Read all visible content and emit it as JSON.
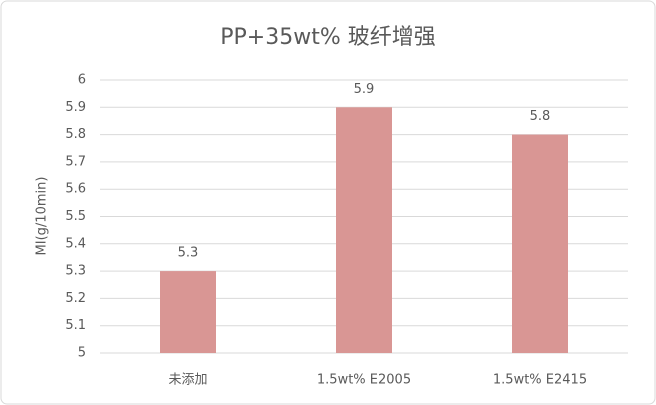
{
  "chart_data": {
    "type": "bar",
    "title": "PP+35wt% 玻纤增强",
    "y_label": "MI(g/10min)",
    "categories": [
      "未添加",
      "1.5wt% E2005",
      "1.5wt% E2415"
    ],
    "values": [
      5.3,
      5.9,
      5.8
    ],
    "color": "#d99694",
    "ylim": [
      5,
      6
    ],
    "yticks": [
      5,
      5.1,
      5.2,
      5.3,
      5.4,
      5.5,
      5.6,
      5.7,
      5.8,
      5.9,
      6
    ],
    "grid": true
  }
}
